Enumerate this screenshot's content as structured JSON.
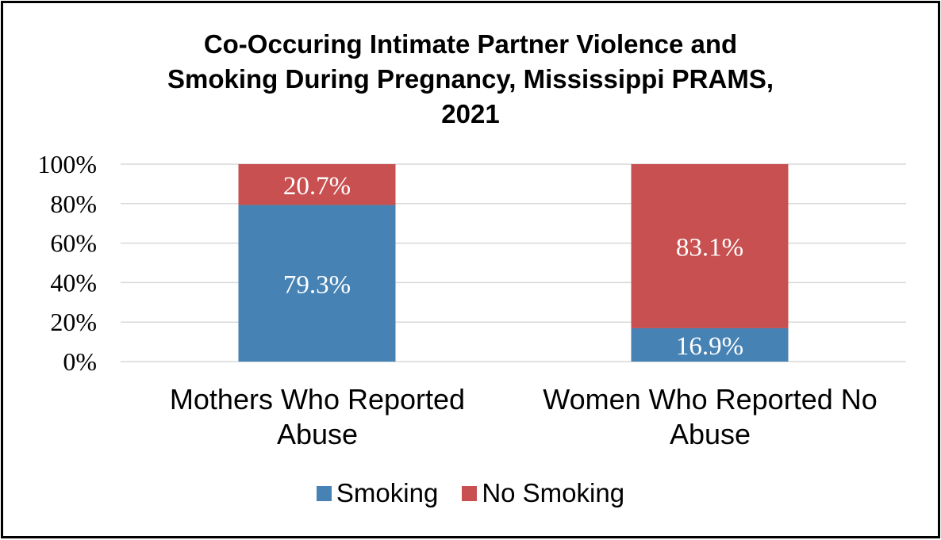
{
  "chart_data": {
    "type": "bar",
    "stacked": true,
    "title_lines": [
      "Co-Occuring Intimate Partner Violence and",
      "Smoking During Pregnancy, Mississippi PRAMS,",
      "2021"
    ],
    "categories": [
      [
        "Mothers Who Reported",
        "Abuse"
      ],
      [
        "Women Who Reported No",
        "Abuse"
      ]
    ],
    "series": [
      {
        "name": "Smoking",
        "color": "#4682b4",
        "values": [
          79.3,
          16.9
        ],
        "labels": [
          "79.3%",
          "16.9%"
        ]
      },
      {
        "name": "No Smoking",
        "color": "#c85050",
        "values": [
          20.7,
          83.1
        ],
        "labels": [
          "20.7%",
          "83.1%"
        ]
      }
    ],
    "y_ticks": [
      "0%",
      "20%",
      "40%",
      "60%",
      "80%",
      "100%"
    ],
    "ylim": [
      0,
      100
    ],
    "grid": true,
    "legend_position": "bottom"
  }
}
